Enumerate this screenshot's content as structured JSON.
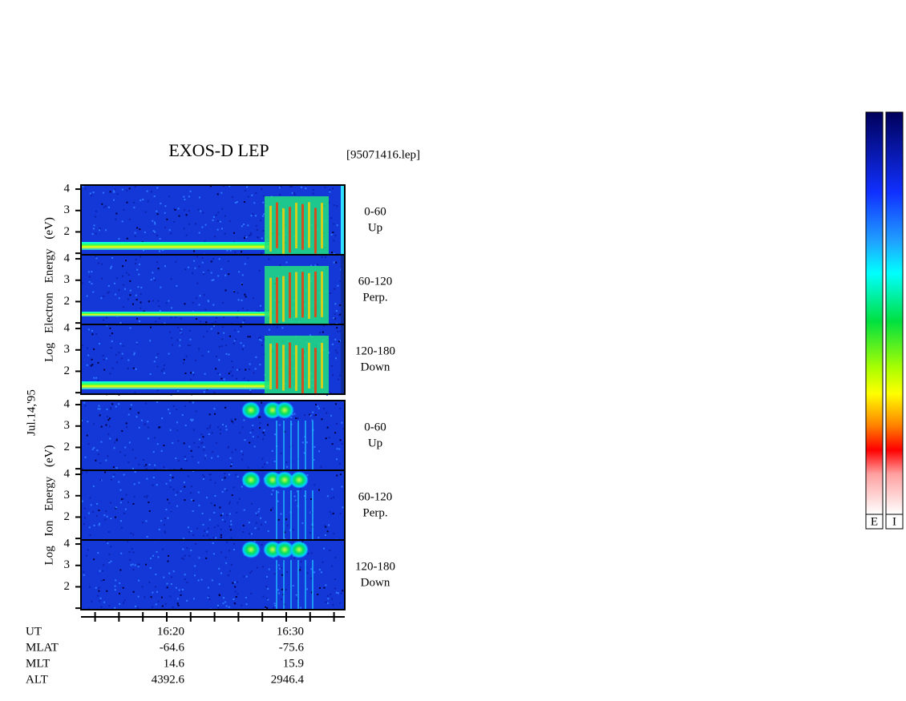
{
  "chart_data": {
    "type": "spectrogram",
    "title": "EXOS-D LEP",
    "file": "[95071416.lep]",
    "date_label": "Jul.14,'95",
    "xlim": [
      12.82,
      34.9
    ],
    "xticks": [
      {
        "value": 20,
        "label": "16:20"
      },
      {
        "value": 30,
        "label": "16:30"
      }
    ],
    "minor_xticks": [
      14,
      16,
      18,
      22,
      24,
      26,
      28,
      32,
      34
    ],
    "groups": [
      {
        "ylabel": "Log Electron Energy (eV)",
        "ylim": [
          0.93,
          4.19
        ],
        "yticks": [
          {
            "value": 1,
            "label": null
          },
          2,
          3,
          4
        ],
        "panels": [
          {
            "range": "0-60",
            "direction": "Up"
          },
          {
            "range": "60-120",
            "direction": "Perp."
          },
          {
            "range": "120-180",
            "direction": "Down"
          }
        ]
      },
      {
        "ylabel": "Log Ion Energy (eV)",
        "ylim": [
          0.93,
          4.19
        ],
        "yticks": [
          {
            "value": 1,
            "label": null
          },
          2,
          3,
          4
        ],
        "panels": [
          {
            "range": "0-60",
            "direction": "Up"
          },
          {
            "range": "60-120",
            "direction": "Perp."
          },
          {
            "range": "120-180",
            "direction": "Down"
          }
        ]
      }
    ],
    "time_label": "UT",
    "ephemeris": [
      {
        "label": "MLAT",
        "values": [
          -64.6,
          -75.6
        ]
      },
      {
        "label": "MLT",
        "values": [
          14.6,
          15.9
        ]
      },
      {
        "label": "ALT",
        "values": [
          4392.6,
          2946.4
        ]
      }
    ],
    "colorbars": [
      "E",
      "I"
    ]
  }
}
